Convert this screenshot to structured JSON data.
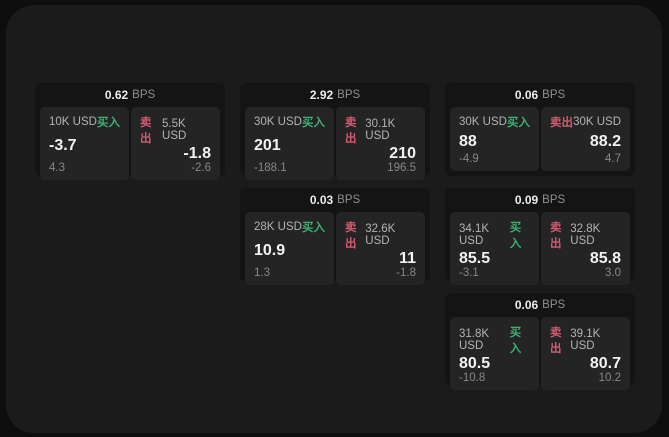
{
  "colors": {
    "page_bg": "#0e0e0f",
    "panel_bg": "#1b1b1c",
    "card_bg": "#141415",
    "tile_bg": "#242425",
    "buy_green": "#3fae73",
    "sell_red": "#d15a6e"
  },
  "labels": {
    "bps": "BPS",
    "buy": "买入",
    "sell": "卖出"
  },
  "cards": [
    {
      "bps": "0.62",
      "buy": {
        "amount": "10K USD",
        "price": "-3.7",
        "change": "4.3"
      },
      "sell": {
        "amount": "5.5K USD",
        "price": "-1.8",
        "change": "-2.6"
      }
    },
    {
      "bps": "2.92",
      "buy": {
        "amount": "30K USD",
        "price": "201",
        "change": "-188.1"
      },
      "sell": {
        "amount": "30.1K USD",
        "price": "210",
        "change": "196.5"
      }
    },
    {
      "bps": "0.06",
      "buy": {
        "amount": "30K USD",
        "price": "88",
        "change": "-4.9"
      },
      "sell": {
        "amount": "30K USD",
        "price": "88.2",
        "change": "4.7"
      }
    },
    {
      "bps": "0.03",
      "buy": {
        "amount": "28K USD",
        "price": "10.9",
        "change": "1.3"
      },
      "sell": {
        "amount": "32.6K USD",
        "price": "11",
        "change": "-1.8"
      }
    },
    {
      "bps": "0.09",
      "buy": {
        "amount": "34.1K USD",
        "price": "85.5",
        "change": "-3.1"
      },
      "sell": {
        "amount": "32.8K USD",
        "price": "85.8",
        "change": "3.0"
      }
    },
    {
      "bps": "0.06",
      "buy": {
        "amount": "31.8K USD",
        "price": "80.5",
        "change": "-10.8"
      },
      "sell": {
        "amount": "39.1K USD",
        "price": "80.7",
        "change": "10.2"
      }
    }
  ]
}
